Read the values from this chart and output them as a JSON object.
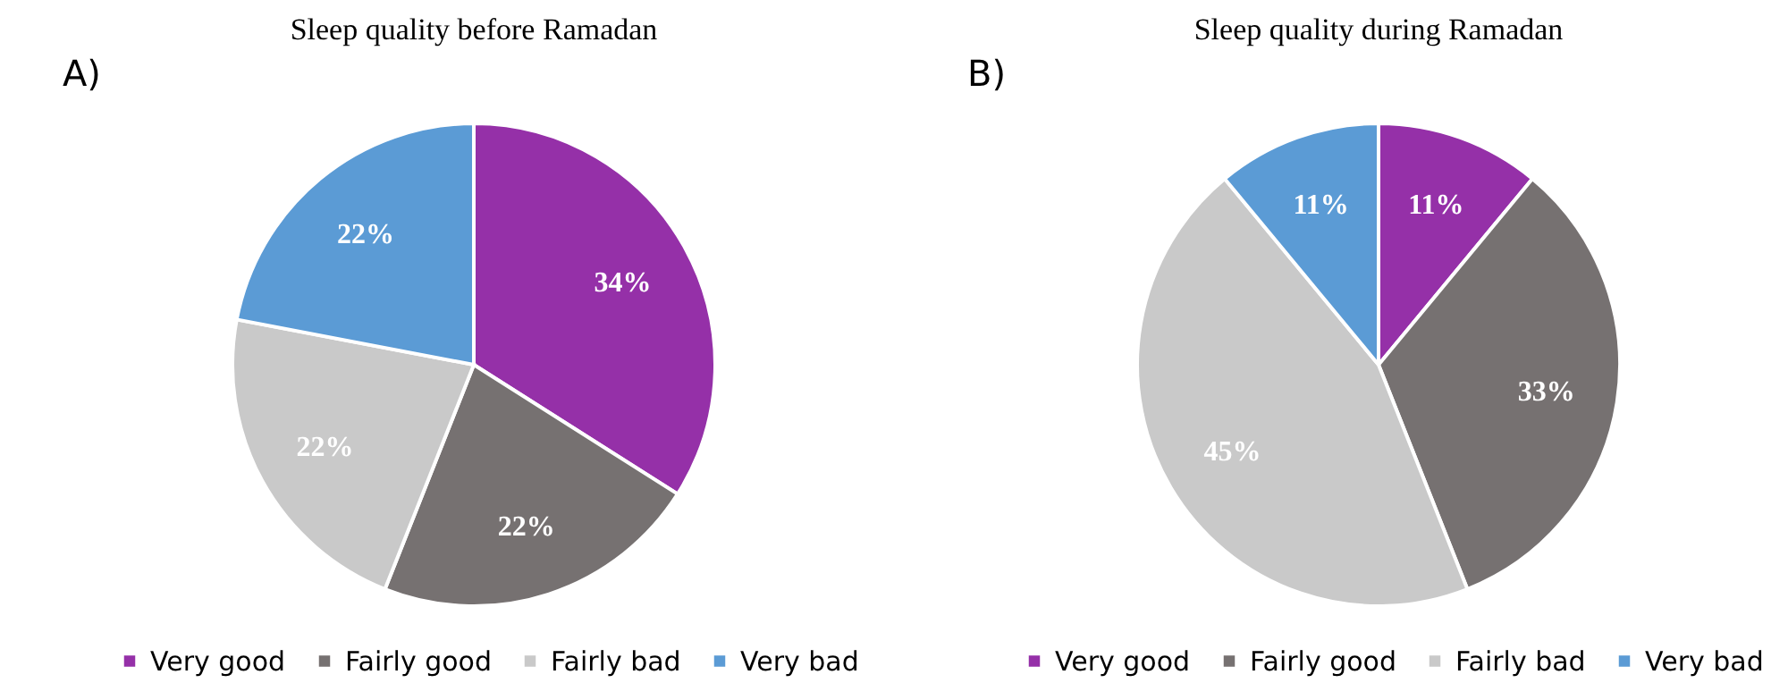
{
  "chart_data": [
    {
      "type": "pie",
      "title": "Sleep quality before Ramadan",
      "annotations": [
        "A)"
      ],
      "categories": [
        "Very good",
        "Fairly good",
        "Fairly bad",
        "Very bad"
      ],
      "values": [
        34,
        22,
        22,
        22
      ],
      "value_labels": [
        "34%",
        "22%",
        "22%",
        "22%"
      ],
      "colors": [
        "#9530a8",
        "#767171",
        "#c9c9c9",
        "#5b9bd5"
      ],
      "legend": "bottom"
    },
    {
      "type": "pie",
      "title": "Sleep quality during Ramadan",
      "annotations": [
        "B)"
      ],
      "categories": [
        "Very good",
        "Fairly good",
        "Fairly bad",
        "Very bad"
      ],
      "values": [
        11,
        33,
        45,
        11
      ],
      "value_labels": [
        "11%",
        "33%",
        "45%",
        "11%"
      ],
      "colors": [
        "#9530a8",
        "#767171",
        "#c9c9c9",
        "#5b9bd5"
      ],
      "legend": "bottom"
    }
  ]
}
